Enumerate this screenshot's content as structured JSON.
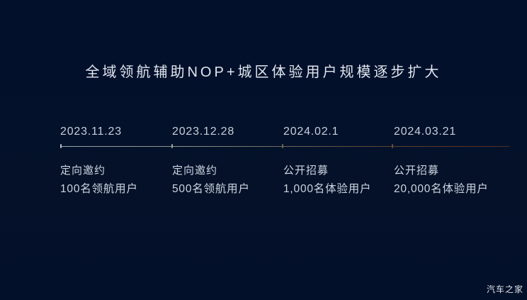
{
  "slide": {
    "title": "全域领航辅助NOP+城区体验用户规模逐步扩大",
    "milestones": [
      {
        "date": "2023.11.23",
        "method": "定向邀约",
        "users": "100名领航用户"
      },
      {
        "date": "2023.12.28",
        "method": "定向邀约",
        "users": "500名领航用户"
      },
      {
        "date": "2024.02.1",
        "method": "公开招募",
        "users": "1,000名体验用户"
      },
      {
        "date": "2024.03.21",
        "method": "公开招募",
        "users": "20,000名体验用户"
      }
    ],
    "colors": {
      "background": "#031029",
      "title_text": "#e1e7f0",
      "body_text": "#ccd4df",
      "timeline_gradient_start": "#97a2ae",
      "timeline_gradient_end": "#4d2d25"
    },
    "watermark": "汽车之家"
  }
}
